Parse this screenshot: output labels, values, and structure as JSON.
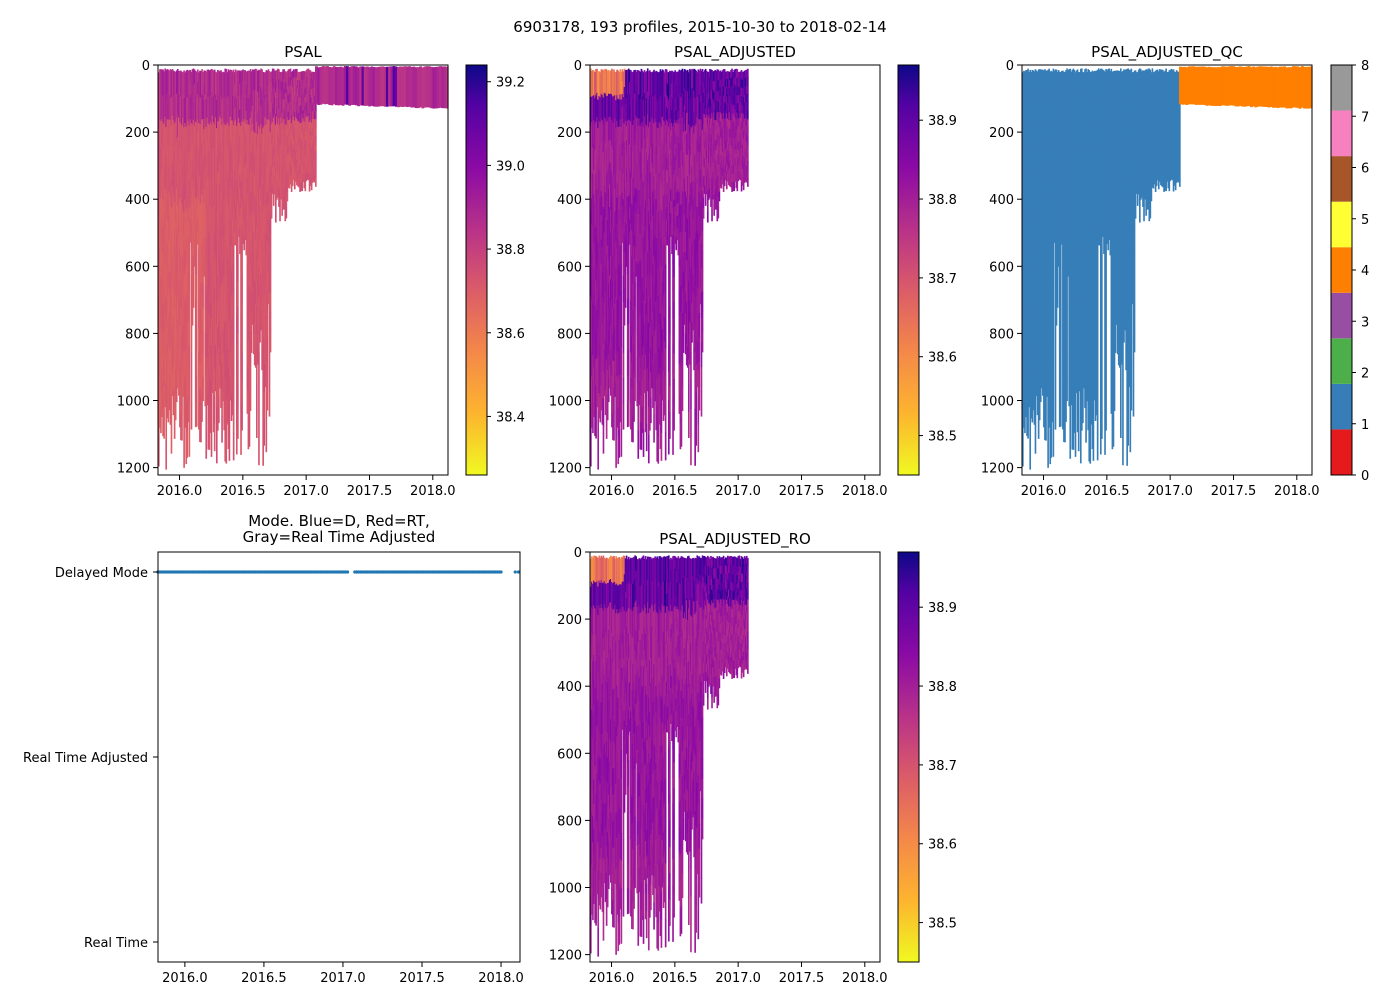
{
  "figure": {
    "suptitle": "6903178, 193 profiles, 2015-10-30 to 2018-02-14"
  },
  "chart_data": [
    {
      "id": "psal",
      "type": "heatmap",
      "title": "PSAL",
      "xlim": [
        2015.83,
        2018.12
      ],
      "ylim": [
        1222,
        0
      ],
      "xticks": [
        2016.0,
        2016.5,
        2017.0,
        2017.5,
        2018.0
      ],
      "xtick_labels": [
        "2016.0",
        "2016.5",
        "2017.0",
        "2017.5",
        "2018.0"
      ],
      "yticks": [
        0,
        200,
        400,
        600,
        800,
        1000,
        1200
      ],
      "ytick_labels": [
        "0",
        "200",
        "400",
        "600",
        "800",
        "1000",
        "1200"
      ],
      "colorbar": {
        "cmap": "plasma_r",
        "range": [
          38.26,
          39.24
        ],
        "ticks": [
          38.4,
          38.6,
          38.8,
          39.0,
          39.2
        ],
        "tick_labels": [
          "38.4",
          "38.6",
          "38.8",
          "39.0",
          "39.2"
        ]
      },
      "data_summary": {
        "deep_profiles_until": 2017.07,
        "shallow_profiles_max_depth_m": 128,
        "shallow_profile_value": 38.9,
        "typical_value": 38.75
      }
    },
    {
      "id": "psal_adjusted",
      "type": "heatmap",
      "title": "PSAL_ADJUSTED",
      "xlim": [
        2015.83,
        2018.12
      ],
      "ylim": [
        1222,
        0
      ],
      "xticks": [
        2016.0,
        2016.5,
        2017.0,
        2017.5,
        2018.0
      ],
      "xtick_labels": [
        "2016.0",
        "2016.5",
        "2017.0",
        "2017.5",
        "2018.0"
      ],
      "yticks": [
        0,
        200,
        400,
        600,
        800,
        1000,
        1200
      ],
      "ytick_labels": [
        "0",
        "200",
        "400",
        "600",
        "800",
        "1000",
        "1200"
      ],
      "colorbar": {
        "cmap": "plasma_r",
        "range": [
          38.45,
          38.97
        ],
        "ticks": [
          38.5,
          38.6,
          38.7,
          38.8,
          38.9
        ],
        "tick_labels": [
          "38.5",
          "38.6",
          "38.7",
          "38.8",
          "38.9"
        ]
      },
      "data_summary": {
        "profiles_until": 2017.07,
        "typical_value": 38.8
      }
    },
    {
      "id": "psal_adjusted_qc",
      "type": "heatmap",
      "title": "PSAL_ADJUSTED_QC",
      "xlim": [
        2015.83,
        2018.12
      ],
      "ylim": [
        1222,
        0
      ],
      "xticks": [
        2016.0,
        2016.5,
        2017.0,
        2017.5,
        2018.0
      ],
      "xtick_labels": [
        "2016.0",
        "2016.5",
        "2017.0",
        "2017.5",
        "2018.0"
      ],
      "yticks": [
        0,
        200,
        400,
        600,
        800,
        1000,
        1200
      ],
      "ytick_labels": [
        "0",
        "200",
        "400",
        "600",
        "800",
        "1000",
        "1200"
      ],
      "colorbar": {
        "type": "categorical",
        "range": [
          0,
          8
        ],
        "ticks": [
          0,
          1,
          2,
          3,
          4,
          5,
          6,
          7,
          8
        ],
        "tick_labels": [
          "0",
          "1",
          "2",
          "3",
          "4",
          "5",
          "6",
          "7",
          "8"
        ],
        "colors": [
          "#e41a1c",
          "#377eb8",
          "#4daf4a",
          "#984ea3",
          "#ff7f00",
          "#ffff33",
          "#a65628",
          "#f781bf",
          "#999999"
        ]
      },
      "data_summary": {
        "flag_1_until": 2017.07,
        "flag_4_from": 2017.07,
        "flag_4_until": 2018.12
      }
    },
    {
      "id": "mode",
      "type": "scatter",
      "title": "Mode. Blue=D, Red=RT,\nGray=Real Time Adjusted",
      "title_lines": [
        "Mode. Blue=D, Red=RT,",
        "Gray=Real Time Adjusted"
      ],
      "xlim": [
        2015.83,
        2018.12
      ],
      "ylim": [
        0,
        2
      ],
      "xticks": [
        2016.0,
        2016.5,
        2017.0,
        2017.5,
        2018.0
      ],
      "xtick_labels": [
        "2016.0",
        "2016.5",
        "2017.0",
        "2017.5",
        "2018.0"
      ],
      "yticks": [
        2,
        1,
        0
      ],
      "ytick_labels": [
        "Delayed Mode",
        "Real Time Adjusted",
        "Real Time"
      ],
      "series": [
        {
          "name": "Delayed Mode",
          "color": "#1f77b4",
          "y": 2,
          "x_start": 2015.83,
          "x_end": 2018.0,
          "count": 193,
          "gaps": [
            [
              2017.03,
              2017.07
            ]
          ],
          "extra_points": [
            2018.09,
            2018.11
          ]
        }
      ]
    },
    {
      "id": "psal_adjusted_ro",
      "type": "heatmap",
      "title": "PSAL_ADJUSTED_RO",
      "xlim": [
        2015.83,
        2018.12
      ],
      "ylim": [
        1222,
        0
      ],
      "xticks": [
        2016.0,
        2016.5,
        2017.0,
        2017.5,
        2018.0
      ],
      "xtick_labels": [
        "2016.0",
        "2016.5",
        "2017.0",
        "2017.5",
        "2018.0"
      ],
      "yticks": [
        0,
        200,
        400,
        600,
        800,
        1000,
        1200
      ],
      "ytick_labels": [
        "0",
        "200",
        "400",
        "600",
        "800",
        "1000",
        "1200"
      ],
      "colorbar": {
        "cmap": "plasma_r",
        "range": [
          38.45,
          38.97
        ],
        "ticks": [
          38.5,
          38.6,
          38.7,
          38.8,
          38.9
        ],
        "tick_labels": [
          "38.5",
          "38.6",
          "38.7",
          "38.8",
          "38.9"
        ]
      },
      "data_summary": {
        "profiles_until": 2017.07,
        "typical_value": 38.8
      }
    }
  ]
}
